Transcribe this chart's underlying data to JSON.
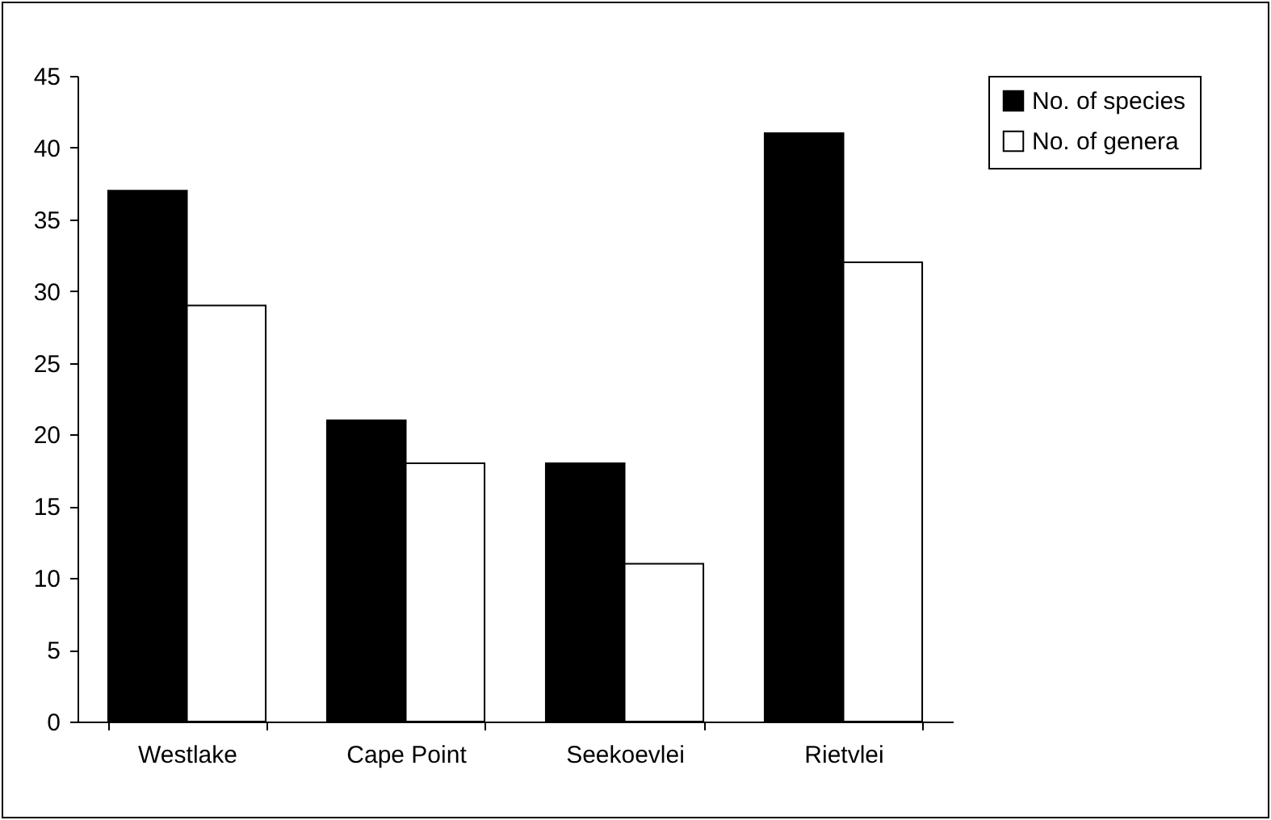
{
  "chart_data": {
    "type": "bar",
    "categories": [
      "Westlake",
      "Cape Point",
      "Seekoevlei",
      "Rietvlei"
    ],
    "series": [
      {
        "name": "No. of species",
        "color": "#000000",
        "values": [
          37,
          21,
          18,
          41
        ]
      },
      {
        "name": "No. of genera",
        "color": "#ffffff",
        "values": [
          29,
          18,
          11,
          32
        ]
      }
    ],
    "ylim": [
      0,
      45
    ],
    "yticks": [
      0,
      5,
      10,
      15,
      20,
      25,
      30,
      35,
      40,
      45
    ],
    "grid": false,
    "legend": "right"
  }
}
